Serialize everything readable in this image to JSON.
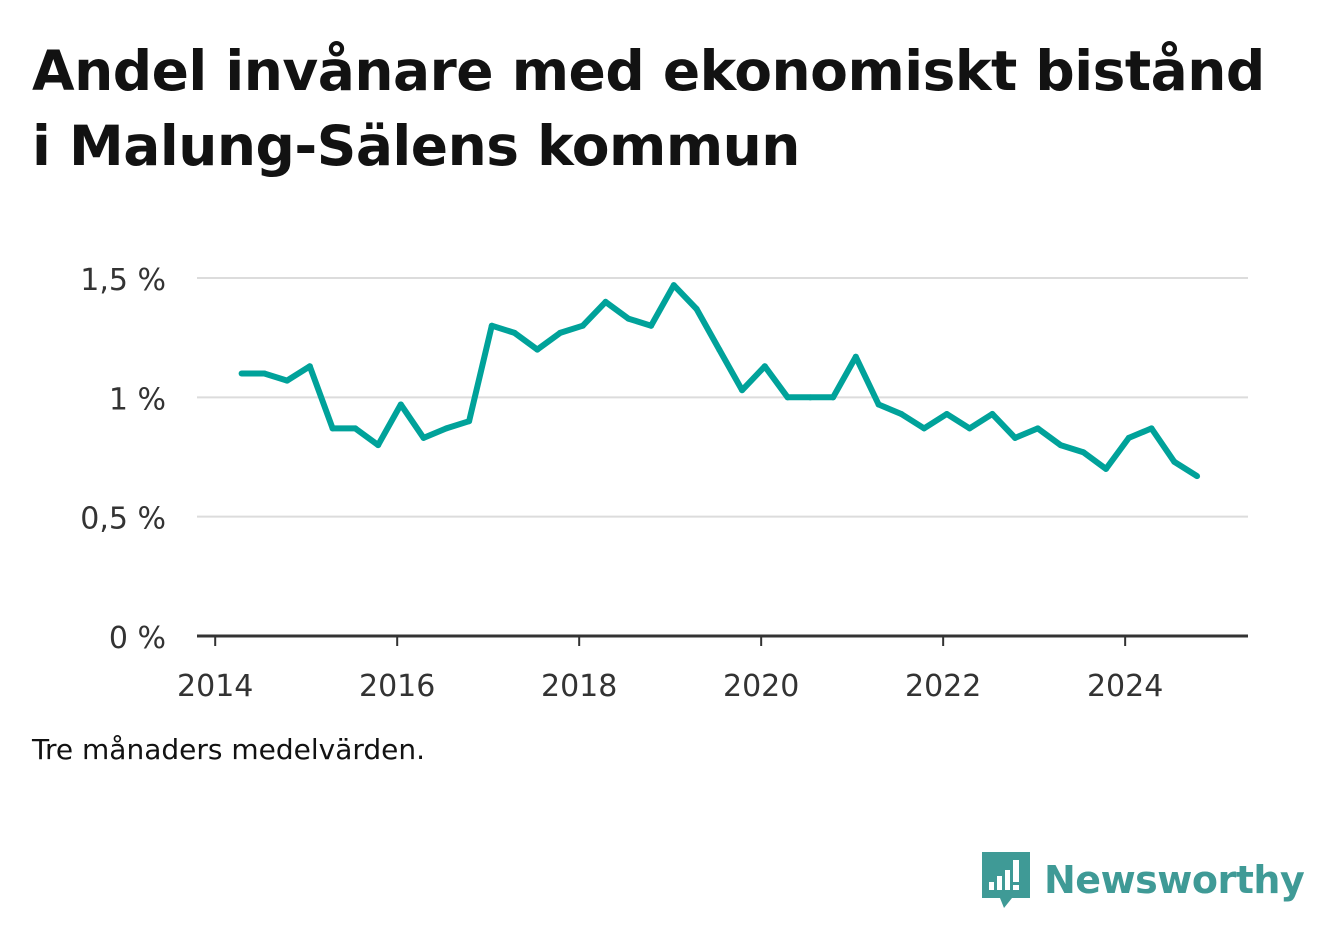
{
  "title": "Andel invånare med ekonomiskt bistånd i Malung-Sälens kommun",
  "note": "Tre månaders medelvärden.",
  "brand": {
    "name": "Newsworthy",
    "icon": "newsworthy-logo-icon",
    "color": "#3f9a96"
  },
  "chart_data": {
    "type": "line",
    "title": "Andel invånare med ekonomiskt bistånd i Malung-Sälens kommun",
    "xlabel": "",
    "ylabel": "",
    "x_range": [
      2013.8,
      2025.35
    ],
    "ylim": [
      0,
      1.5
    ],
    "y_ticks": [
      {
        "value": 0,
        "label": "0 %"
      },
      {
        "value": 0.5,
        "label": "0,5 %"
      },
      {
        "value": 1,
        "label": "1 %"
      },
      {
        "value": 1.5,
        "label": "1,5 %"
      }
    ],
    "x_ticks": [
      {
        "value": 2014,
        "label": "2014"
      },
      {
        "value": 2016,
        "label": "2016"
      },
      {
        "value": 2018,
        "label": "2018"
      },
      {
        "value": 2020,
        "label": "2020"
      },
      {
        "value": 2022,
        "label": "2022"
      },
      {
        "value": 2024,
        "label": "2024"
      }
    ],
    "grid": true,
    "legend": "none",
    "color": "#00a29a",
    "series": [
      {
        "x": [
          2014.29,
          2014.54,
          2014.79,
          2015.04,
          2015.29,
          2015.54,
          2015.79,
          2016.04,
          2016.29,
          2016.54,
          2016.79,
          2017.04,
          2017.29,
          2017.54,
          2017.79,
          2018.04,
          2018.29,
          2018.54,
          2018.79,
          2019.04,
          2019.29,
          2019.54,
          2019.79,
          2020.04,
          2020.29,
          2020.54,
          2020.79,
          2021.04,
          2021.29,
          2021.54,
          2021.79,
          2022.04,
          2022.29,
          2022.54,
          2022.79,
          2023.04,
          2023.29,
          2023.54,
          2023.79,
          2024.04,
          2024.29,
          2024.54,
          2024.79
        ],
        "values": [
          1.1,
          1.1,
          1.07,
          1.13,
          0.87,
          0.87,
          0.8,
          0.97,
          0.83,
          0.87,
          0.9,
          1.3,
          1.27,
          1.2,
          1.27,
          1.3,
          1.4,
          1.33,
          1.3,
          1.47,
          1.37,
          1.2,
          1.03,
          1.13,
          1.0,
          1.0,
          1.0,
          1.17,
          0.97,
          0.93,
          0.87,
          0.93,
          0.87,
          0.93,
          0.83,
          0.87,
          0.8,
          0.77,
          0.7,
          0.83,
          0.87,
          0.73,
          0.67
        ]
      }
    ]
  }
}
